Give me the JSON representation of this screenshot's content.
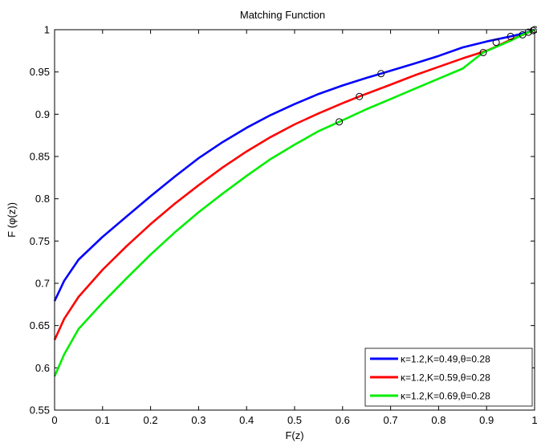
{
  "chart_data": {
    "type": "line",
    "title": "Matching Function",
    "xlabel": "F(z)",
    "ylabel": "F (φ(z))",
    "xlim": [
      0,
      1
    ],
    "ylim": [
      0.55,
      1
    ],
    "xticks": [
      "0",
      "0.1",
      "0.2",
      "0.3",
      "0.4",
      "0.5",
      "0.6",
      "0.7",
      "0.8",
      "0.9",
      "1"
    ],
    "yticks": [
      "0.55",
      "0.6",
      "0.65",
      "0.7",
      "0.75",
      "0.8",
      "0.85",
      "0.9",
      "0.95",
      "1"
    ],
    "grid": false,
    "legend_position": "bottom-right",
    "series": [
      {
        "name": "κ=1.2,K=0.49,θ=0.28",
        "color": "#0000ff",
        "x": [
          0,
          0.02,
          0.05,
          0.1,
          0.15,
          0.2,
          0.25,
          0.3,
          0.35,
          0.4,
          0.45,
          0.5,
          0.55,
          0.6,
          0.65,
          0.68,
          0.75,
          0.8,
          0.85,
          0.9,
          0.95,
          0.98,
          1.0
        ],
        "y": [
          0.679,
          0.703,
          0.728,
          0.755,
          0.779,
          0.803,
          0.826,
          0.848,
          0.867,
          0.884,
          0.899,
          0.912,
          0.924,
          0.934,
          0.943,
          0.948,
          0.96,
          0.969,
          0.979,
          0.986,
          0.992,
          0.996,
          1.0
        ]
      },
      {
        "name": "κ=1.2,K=0.59,θ=0.28",
        "color": "#ff0000",
        "x": [
          0,
          0.02,
          0.05,
          0.1,
          0.15,
          0.2,
          0.25,
          0.3,
          0.35,
          0.4,
          0.45,
          0.5,
          0.55,
          0.6,
          0.635,
          0.7,
          0.75,
          0.8,
          0.85,
          0.9,
          0.92,
          0.95,
          0.98,
          1.0
        ],
        "y": [
          0.633,
          0.658,
          0.684,
          0.716,
          0.744,
          0.77,
          0.794,
          0.816,
          0.837,
          0.856,
          0.873,
          0.888,
          0.901,
          0.913,
          0.921,
          0.935,
          0.946,
          0.956,
          0.966,
          0.975,
          0.98,
          0.988,
          0.995,
          1.0
        ]
      },
      {
        "name": "κ=1.2,K=0.69,θ=0.28",
        "color": "#00ee00",
        "x": [
          0,
          0.02,
          0.05,
          0.1,
          0.15,
          0.2,
          0.25,
          0.3,
          0.35,
          0.4,
          0.45,
          0.5,
          0.55,
          0.593,
          0.65,
          0.7,
          0.75,
          0.8,
          0.85,
          0.893,
          0.95,
          0.975,
          1.0
        ],
        "y": [
          0.59,
          0.616,
          0.646,
          0.677,
          0.706,
          0.734,
          0.76,
          0.784,
          0.806,
          0.827,
          0.847,
          0.864,
          0.88,
          0.891,
          0.906,
          0.918,
          0.93,
          0.942,
          0.954,
          0.973,
          0.987,
          0.994,
          1.0
        ]
      }
    ],
    "markers": [
      {
        "x": 0.68,
        "y": 0.948
      },
      {
        "x": 0.635,
        "y": 0.921
      },
      {
        "x": 0.593,
        "y": 0.891
      },
      {
        "x": 0.893,
        "y": 0.973
      },
      {
        "x": 0.92,
        "y": 0.985
      },
      {
        "x": 0.95,
        "y": 0.992
      },
      {
        "x": 0.975,
        "y": 0.994
      },
      {
        "x": 0.987,
        "y": 0.997
      },
      {
        "x": 0.997,
        "y": 0.999
      },
      {
        "x": 1.0,
        "y": 1.0
      }
    ]
  }
}
